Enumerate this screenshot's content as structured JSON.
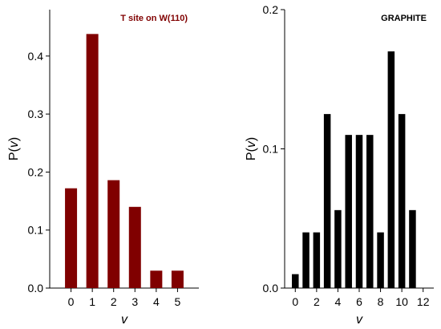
{
  "chart_data": [
    {
      "type": "bar",
      "title": "T site on W(110)",
      "title_color": "#800000",
      "bar_color": "#800000",
      "xlabel": "v",
      "ylabel_prefix": "P(",
      "ylabel_var": "v",
      "ylabel_suffix": ")",
      "x": [
        0,
        1,
        2,
        3,
        4,
        5
      ],
      "values": [
        0.172,
        0.438,
        0.186,
        0.14,
        0.03,
        0.03
      ],
      "xticks": [
        0,
        1,
        2,
        3,
        4,
        5
      ],
      "xtick_labels": [
        "0",
        "1",
        "2",
        "3",
        "4",
        "5"
      ],
      "yticks": [
        0.0,
        0.1,
        0.2,
        0.3,
        0.4
      ],
      "ytick_labels": [
        "0.0",
        "0.1",
        "0.2",
        "0.3",
        "0.4"
      ],
      "xlim": [
        -1,
        6
      ],
      "ylim": [
        0,
        0.48
      ],
      "grid": false,
      "legend": "none"
    },
    {
      "type": "bar",
      "title": "GRAPHITE",
      "title_color": "#000000",
      "bar_color": "#000000",
      "xlabel": "v",
      "ylabel_prefix": "P(",
      "ylabel_var": "v",
      "ylabel_suffix": ")",
      "x": [
        0,
        1,
        2,
        3,
        4,
        5,
        6,
        7,
        8,
        9,
        10,
        11
      ],
      "values": [
        0.01,
        0.04,
        0.04,
        0.125,
        0.056,
        0.11,
        0.11,
        0.11,
        0.04,
        0.17,
        0.125,
        0.056
      ],
      "xticks": [
        0,
        2,
        4,
        6,
        8,
        10,
        12
      ],
      "xtick_labels": [
        "0",
        "2",
        "4",
        "6",
        "8",
        "10",
        "12"
      ],
      "yticks": [
        0.0,
        0.1,
        0.2
      ],
      "ytick_labels": [
        "0.0",
        "0.1",
        "0.2"
      ],
      "xlim": [
        -1,
        13
      ],
      "ylim": [
        0,
        0.2
      ],
      "grid": false,
      "legend": "none"
    }
  ]
}
